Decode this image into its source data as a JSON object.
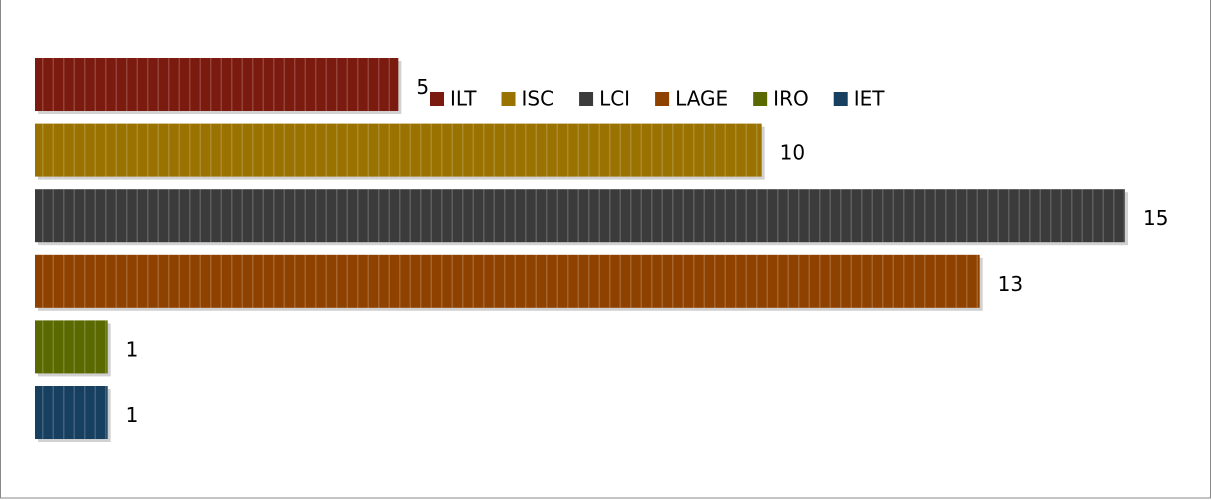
{
  "chart_data": {
    "type": "bar",
    "orientation": "horizontal",
    "series": [
      {
        "name": "ILT",
        "color": "#7b1a0e",
        "values": [
          5
        ]
      },
      {
        "name": "ISC",
        "color": "#9a7200",
        "values": [
          10
        ]
      },
      {
        "name": "LCI",
        "color": "#3b3b3b",
        "values": [
          15
        ]
      },
      {
        "name": "LAGE",
        "color": "#8f4200",
        "values": [
          13
        ]
      },
      {
        "name": "IRO",
        "color": "#5a6a00",
        "values": [
          1
        ]
      },
      {
        "name": "IET",
        "color": "#173f5f",
        "values": [
          1
        ]
      }
    ],
    "xlim": [
      0,
      15
    ],
    "legend": "top"
  }
}
